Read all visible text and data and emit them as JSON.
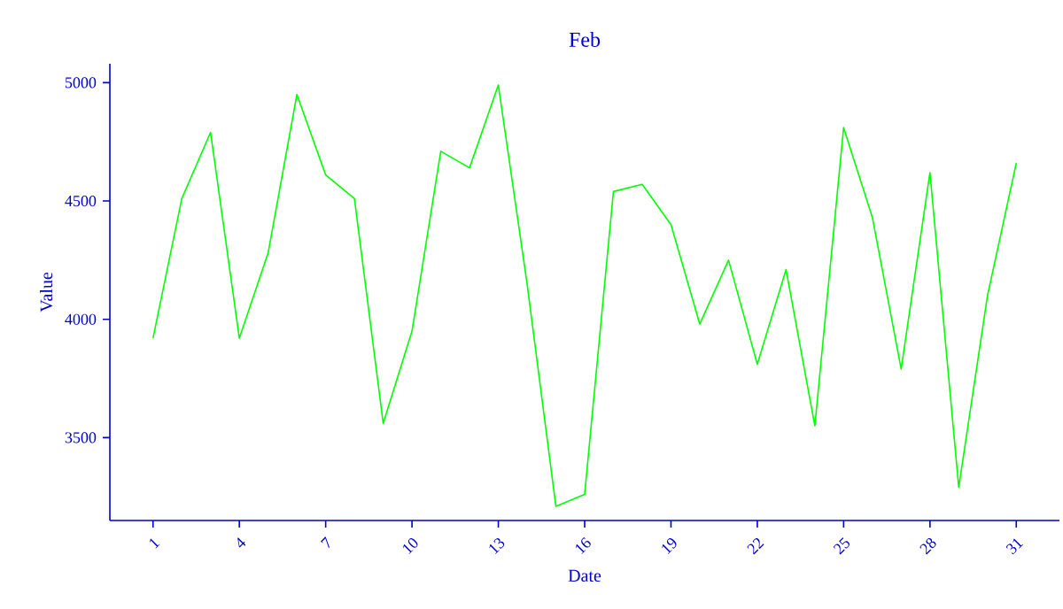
{
  "chart_data": {
    "type": "line",
    "title": "Feb",
    "xlabel": "Date",
    "ylabel": "Value",
    "x": [
      1,
      2,
      3,
      4,
      5,
      6,
      7,
      8,
      9,
      10,
      11,
      12,
      13,
      14,
      15,
      16,
      17,
      18,
      19,
      20,
      21,
      22,
      23,
      24,
      25,
      26,
      27,
      28,
      29,
      30,
      31
    ],
    "series": [
      {
        "color": "#00ff00",
        "values": [
          3920,
          4510,
          4790,
          3920,
          4280,
          4950,
          4610,
          4510,
          3560,
          3950,
          4710,
          4640,
          4990,
          4150,
          3210,
          3260,
          4540,
          4570,
          4400,
          3980,
          4250,
          3810,
          4210,
          3550,
          4810,
          4430,
          3790,
          4620,
          3290,
          4100,
          4660
        ]
      }
    ],
    "xlim": [
      -0.5,
      32.5
    ],
    "ylim": [
      3150,
      5080
    ],
    "xticks": [
      1,
      4,
      7,
      10,
      13,
      16,
      19,
      22,
      25,
      28,
      31
    ],
    "yticks": [
      3500,
      4000,
      4500,
      5000
    ],
    "marker": "none",
    "line_style": "solid"
  }
}
